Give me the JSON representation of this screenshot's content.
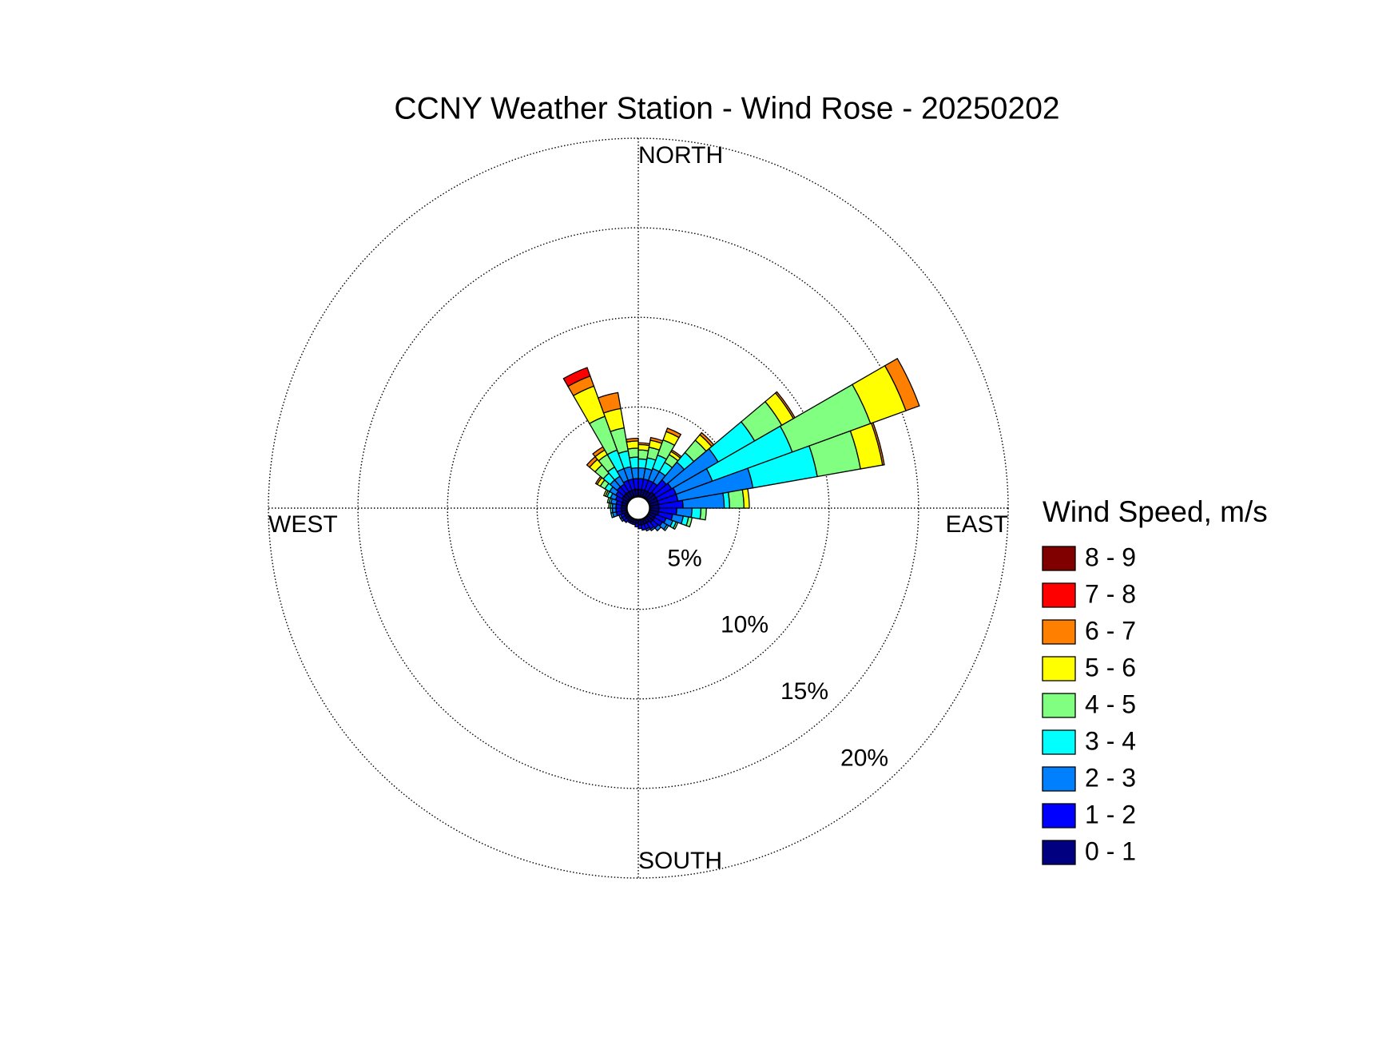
{
  "chart_data": {
    "type": "windrose",
    "title": "CCNY Weather Station - Wind Rose - 20250202",
    "legend_title": "Wind Speed, m/s",
    "direction_labels": [
      "NORTH",
      "EAST",
      "SOUTH",
      "WEST"
    ],
    "rlim": [
      0,
      20
    ],
    "rticks": [
      {
        "value": 5,
        "label": "5%"
      },
      {
        "value": 10,
        "label": "10%"
      },
      {
        "value": 15,
        "label": "15%"
      },
      {
        "value": 20,
        "label": "20%"
      }
    ],
    "bin_width": 10,
    "theta": [
      5,
      15,
      25,
      35,
      45,
      55,
      65,
      75,
      85,
      95,
      105,
      115,
      125,
      135,
      145,
      155,
      165,
      175,
      185,
      195,
      205,
      215,
      225,
      235,
      245,
      255,
      265,
      275,
      285,
      295,
      305,
      315,
      325,
      335,
      345,
      355
    ],
    "series": [
      {
        "name": "0 - 1",
        "color": "#000080",
        "values": [
          0.4,
          0.4,
          0.4,
          0.4,
          0.5,
          0.5,
          0.5,
          0.5,
          0.5,
          0.5,
          0.5,
          0.4,
          0.4,
          0.4,
          0.3,
          0.3,
          0.3,
          0.3,
          0.2,
          0.2,
          0.2,
          0.2,
          0.2,
          0.2,
          0.2,
          0.3,
          0.3,
          0.3,
          0.3,
          0.3,
          0.4,
          0.4,
          0.4,
          0.4,
          0.4,
          0.4
        ]
      },
      {
        "name": "1 - 2",
        "color": "#0000ff",
        "values": [
          0.6,
          0.6,
          0.6,
          0.6,
          0.9,
          1.0,
          1.1,
          1.1,
          1.35,
          1.0,
          0.8,
          0.6,
          0.5,
          0.4,
          0.4,
          0.3,
          0.3,
          0.2,
          0.2,
          0.1,
          0.1,
          0.1,
          0.2,
          0.2,
          0.2,
          0.3,
          0.3,
          0.3,
          0.3,
          0.4,
          0.4,
          0.5,
          0.5,
          0.6,
          0.6,
          0.6
        ]
      },
      {
        "name": "2 - 3",
        "color": "#0080ff",
        "values": [
          0.6,
          0.6,
          0.7,
          0.7,
          1.3,
          3.0,
          2.15,
          4.25,
          2.3,
          0.85,
          0.6,
          0.4,
          0.3,
          0.2,
          0.1,
          0.1,
          0,
          0,
          0,
          0,
          0,
          0,
          0,
          0.1,
          0.1,
          0.2,
          0.2,
          0.2,
          0.3,
          0.3,
          0.4,
          0.5,
          0.5,
          0.7,
          0.7,
          0.6
        ]
      },
      {
        "name": "3 - 4",
        "color": "#00ffff",
        "values": [
          0.5,
          0.6,
          0.8,
          0.6,
          0.7,
          2.35,
          4.75,
          3.65,
          0.3,
          0.5,
          0.3,
          0.2,
          0.1,
          0,
          0,
          0,
          0,
          0,
          0,
          0,
          0,
          0,
          0,
          0,
          0,
          0.1,
          0.1,
          0.1,
          0.1,
          0.2,
          0.3,
          0.5,
          0.6,
          1.1,
          0.9,
          0.6
        ]
      },
      {
        "name": "4 - 5",
        "color": "#80ff80",
        "values": [
          0.5,
          0.6,
          0.9,
          0.5,
          0.9,
          1.75,
          4.65,
          2.45,
          0.8,
          0.3,
          0.2,
          0.1,
          0,
          0,
          0,
          0,
          0,
          0,
          0,
          0,
          0,
          0,
          0,
          0,
          0,
          0,
          0,
          0.1,
          0.1,
          0.1,
          0.3,
          0.6,
          0.8,
          2.0,
          1.3,
          0.5
        ]
      },
      {
        "name": "5 - 6",
        "color": "#ffff00",
        "values": [
          0.3,
          0.4,
          0.5,
          0.2,
          0.4,
          0.75,
          2.1,
          1.25,
          0.3,
          0,
          0,
          0,
          0,
          0,
          0,
          0,
          0,
          0,
          0,
          0,
          0,
          0,
          0,
          0,
          0,
          0,
          0,
          0,
          0,
          0.1,
          0.2,
          0.4,
          0.3,
          1.8,
          1.1,
          0.4
        ]
      },
      {
        "name": "6 - 7",
        "color": "#ff8000",
        "values": [
          0.1,
          0.15,
          0.2,
          0.1,
          0.15,
          0.1,
          0.8,
          0.1,
          0,
          0,
          0,
          0,
          0,
          0,
          0,
          0,
          0,
          0,
          0,
          0,
          0,
          0,
          0,
          0,
          0,
          0,
          0,
          0,
          0,
          0,
          0.1,
          0.2,
          0.2,
          0.6,
          0.9,
          0.15
        ]
      },
      {
        "name": "7 - 8",
        "color": "#ff0000",
        "values": [
          0,
          0,
          0,
          0,
          0,
          0,
          0,
          0,
          0,
          0,
          0,
          0,
          0,
          0,
          0,
          0,
          0,
          0,
          0,
          0,
          0,
          0,
          0,
          0,
          0,
          0,
          0,
          0,
          0,
          0,
          0,
          0,
          0,
          0.5,
          0,
          0
        ]
      },
      {
        "name": "8 - 9",
        "color": "#800000",
        "values": [
          0,
          0,
          0,
          0,
          0,
          0,
          0,
          0,
          0,
          0,
          0,
          0,
          0,
          0,
          0,
          0,
          0,
          0,
          0,
          0,
          0,
          0,
          0,
          0,
          0,
          0,
          0,
          0,
          0,
          0,
          0,
          0,
          0,
          0,
          0,
          0
        ]
      }
    ]
  }
}
